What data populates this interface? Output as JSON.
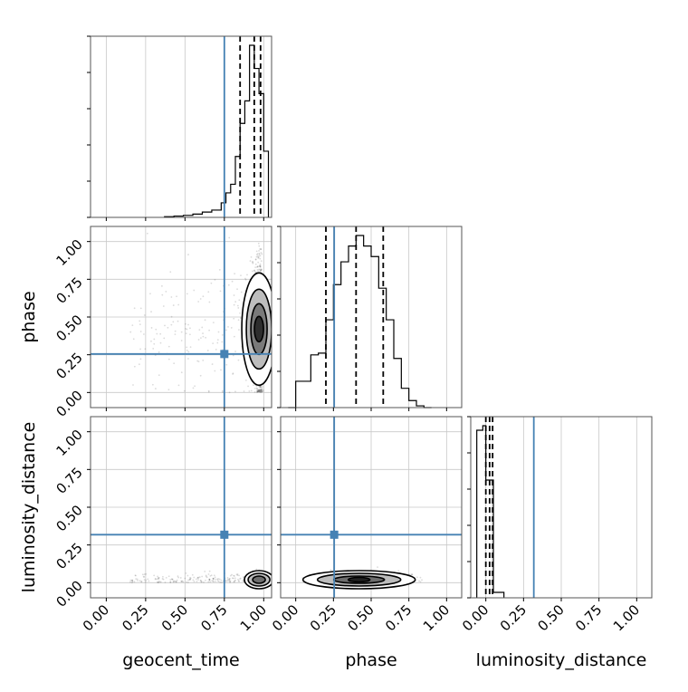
{
  "chart_data": {
    "type": "corner",
    "parameters": [
      "geocent_time",
      "phase",
      "luminosity_distance"
    ],
    "axis_labels": [
      "geocent_time",
      "phase",
      "luminosity_distance"
    ],
    "tick_labels": [
      "0.00",
      "0.25",
      "0.50",
      "0.75",
      "1.00"
    ],
    "ranges": {
      "geocent_time": [
        -0.1,
        1.05
      ],
      "phase": [
        -0.1,
        1.1
      ],
      "luminosity_distance": [
        -0.1,
        1.1
      ]
    },
    "truths": {
      "geocent_time": 0.75,
      "phase": 0.255,
      "luminosity_distance": 0.318
    },
    "truth_color": "#4682b4",
    "grid": true,
    "histograms": [
      {
        "parameter": "geocent_time",
        "bin_edges": [
          0.37,
          0.43,
          0.49,
          0.55,
          0.61,
          0.67,
          0.73,
          0.76,
          0.79,
          0.82,
          0.85,
          0.88,
          0.91,
          0.94,
          0.97,
          1.0,
          1.03
        ],
        "counts": [
          1,
          2,
          3,
          5,
          8,
          11,
          22,
          37,
          50,
          92,
          142,
          176,
          260,
          225,
          187,
          100
        ],
        "quantiles": [
          0.85,
          0.94,
          0.98
        ]
      },
      {
        "parameter": "phase",
        "bin_edges": [
          -0.05,
          0.0,
          0.05,
          0.1,
          0.15,
          0.2,
          0.25,
          0.3,
          0.35,
          0.4,
          0.45,
          0.5,
          0.55,
          0.6,
          0.65,
          0.7,
          0.75,
          0.8,
          0.85,
          0.9
        ],
        "counts": [
          0,
          15,
          15,
          30,
          31,
          50,
          70,
          83,
          92,
          98,
          92,
          86,
          68,
          50,
          28,
          11,
          4,
          1,
          0
        ],
        "quantiles": [
          0.2,
          0.4,
          0.58
        ]
      },
      {
        "parameter": "luminosity_distance",
        "bin_edges": [
          -0.06,
          -0.02,
          0.0,
          0.02,
          0.05,
          0.12
        ],
        "counts": [
          185,
          190,
          130,
          130,
          6
        ],
        "quantiles": [
          0.0,
          0.025,
          0.045
        ]
      }
    ],
    "scatter_2d": [
      {
        "x": "geocent_time",
        "y": "phase",
        "peak": [
          0.97,
          0.42
        ],
        "spread": [
          0.03,
          0.22
        ]
      },
      {
        "x": "geocent_time",
        "y": "luminosity_distance",
        "peak": [
          0.97,
          0.02
        ],
        "spread": [
          0.03,
          0.03
        ]
      },
      {
        "x": "phase",
        "y": "luminosity_distance",
        "peak": [
          0.42,
          0.02
        ],
        "spread": [
          0.14,
          0.03
        ]
      }
    ]
  }
}
